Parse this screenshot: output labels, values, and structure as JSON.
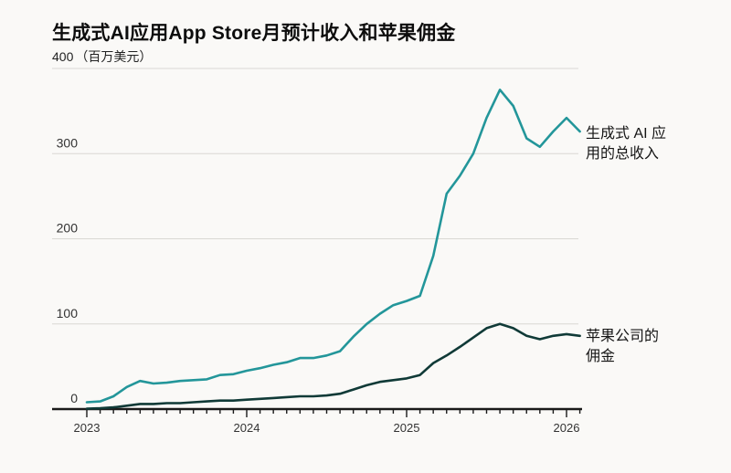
{
  "header": {
    "title": "生成式AI应用App Store月预计收入和苹果佣金"
  },
  "y_axis": {
    "top_tick": "400",
    "unit": "（百万美元）"
  },
  "colors": {
    "revenue_line": "#23969a",
    "commission_line": "#103a37",
    "gridline": "#d9d8d4",
    "axis": "#1a1a1a",
    "tick_label": "#333333",
    "background": "#faf9f7"
  },
  "chart_data": {
    "type": "line",
    "title": "生成式AI应用App Store月预计收入和苹果佣金",
    "xlabel": "",
    "ylabel": "百万美元",
    "unit_label": "（百万美元）",
    "ylim": [
      0,
      400
    ],
    "yticks": [
      0,
      100,
      200,
      300,
      400
    ],
    "grid": true,
    "legend_position": "right-annotations",
    "x": [
      "2023-01",
      "2023-02",
      "2023-03",
      "2023-04",
      "2023-05",
      "2023-06",
      "2023-07",
      "2023-08",
      "2023-09",
      "2023-10",
      "2023-11",
      "2023-12",
      "2024-01",
      "2024-02",
      "2024-03",
      "2024-04",
      "2024-05",
      "2024-06",
      "2024-07",
      "2024-08",
      "2024-09",
      "2024-10",
      "2024-11",
      "2024-12",
      "2025-01",
      "2025-02",
      "2025-03",
      "2025-04",
      "2025-05",
      "2025-06",
      "2025-07",
      "2025-08",
      "2025-09",
      "2025-10",
      "2025-11",
      "2025-12",
      "2026-01",
      "2026-02"
    ],
    "x_year_labels": [
      "2023",
      "2024",
      "2025",
      "2026"
    ],
    "x_year_month_index": [
      0,
      12,
      24,
      36
    ],
    "series": [
      {
        "name": "生成式 AI 应用的总收入",
        "label_lines": [
          "生成式 AI 应",
          "用的总收入"
        ],
        "color": "#23969a",
        "values": [
          8,
          9,
          15,
          26,
          33,
          30,
          31,
          33,
          34,
          35,
          40,
          41,
          45,
          48,
          52,
          55,
          60,
          60,
          63,
          68,
          85,
          100,
          112,
          122,
          127,
          133,
          180,
          253,
          274,
          300,
          342,
          375,
          356,
          318,
          308,
          326,
          342,
          326
        ]
      },
      {
        "name": "苹果公司的佣金",
        "label_lines": [
          "苹果公司的",
          "佣金"
        ],
        "color": "#103a37",
        "values": [
          0.5,
          1,
          2,
          4,
          6,
          6,
          7,
          7,
          8,
          9,
          10,
          10,
          11,
          12,
          13,
          14,
          15,
          15,
          16,
          18,
          23,
          28,
          32,
          34,
          36,
          40,
          54,
          63,
          73,
          84,
          95,
          100,
          95,
          86,
          82,
          86,
          88,
          86
        ]
      }
    ]
  }
}
